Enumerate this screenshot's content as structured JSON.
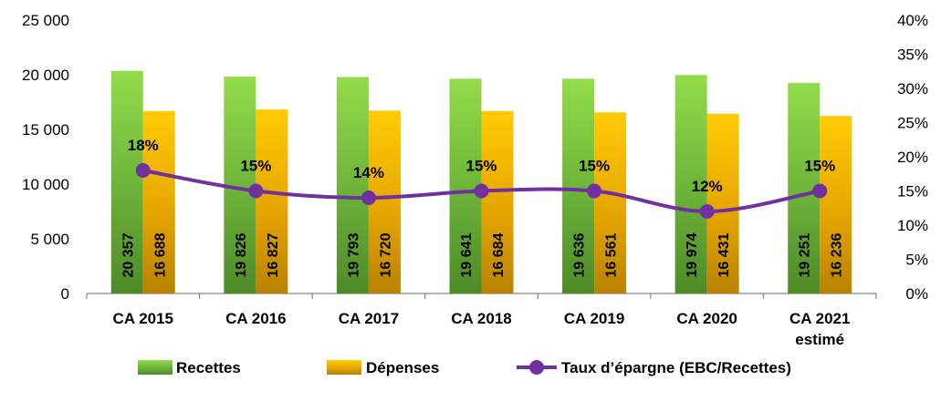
{
  "chart_data": {
    "type": "bar",
    "categories": [
      [
        "CA 2015"
      ],
      [
        "CA 2016"
      ],
      [
        "CA 2017"
      ],
      [
        "CA 2018"
      ],
      [
        "CA 2019"
      ],
      [
        "CA 2020"
      ],
      [
        "CA 2021",
        "estimé"
      ]
    ],
    "series": [
      {
        "name": "Recettes",
        "kind": "bar",
        "axis": "left",
        "color": "#7fc241",
        "values": [
          20357,
          19826,
          19793,
          19641,
          19636,
          19974,
          19251
        ],
        "labels": [
          "20 357",
          "19 826",
          "19 793",
          "19 641",
          "19 636",
          "19 974",
          "19 251"
        ]
      },
      {
        "name": "Dépenses",
        "kind": "bar",
        "axis": "left",
        "color": "#f2b800",
        "values": [
          16688,
          16827,
          16720,
          16684,
          16561,
          16431,
          16236
        ],
        "labels": [
          "16 688",
          "16 827",
          "16 720",
          "16 684",
          "16 561",
          "16 431",
          "16 236"
        ]
      },
      {
        "name": "Taux d’épargne (EBC/Recettes)",
        "kind": "line",
        "axis": "right",
        "color": "#7030a0",
        "values": [
          0.18,
          0.15,
          0.14,
          0.15,
          0.15,
          0.12,
          0.15
        ],
        "labels": [
          "18%",
          "15%",
          "14%",
          "15%",
          "15%",
          "12%",
          "15%"
        ]
      }
    ],
    "y_left": {
      "min": 0,
      "max": 25000,
      "ticks": [
        "0",
        "5 000",
        "10 000",
        "15 000",
        "20 000",
        "25 000"
      ]
    },
    "y_right": {
      "min": 0,
      "max": 0.4,
      "ticks": [
        "0%",
        "5%",
        "10%",
        "15%",
        "20%",
        "25%",
        "30%",
        "35%",
        "40%"
      ]
    },
    "grid": false,
    "legend_position": "bottom"
  }
}
